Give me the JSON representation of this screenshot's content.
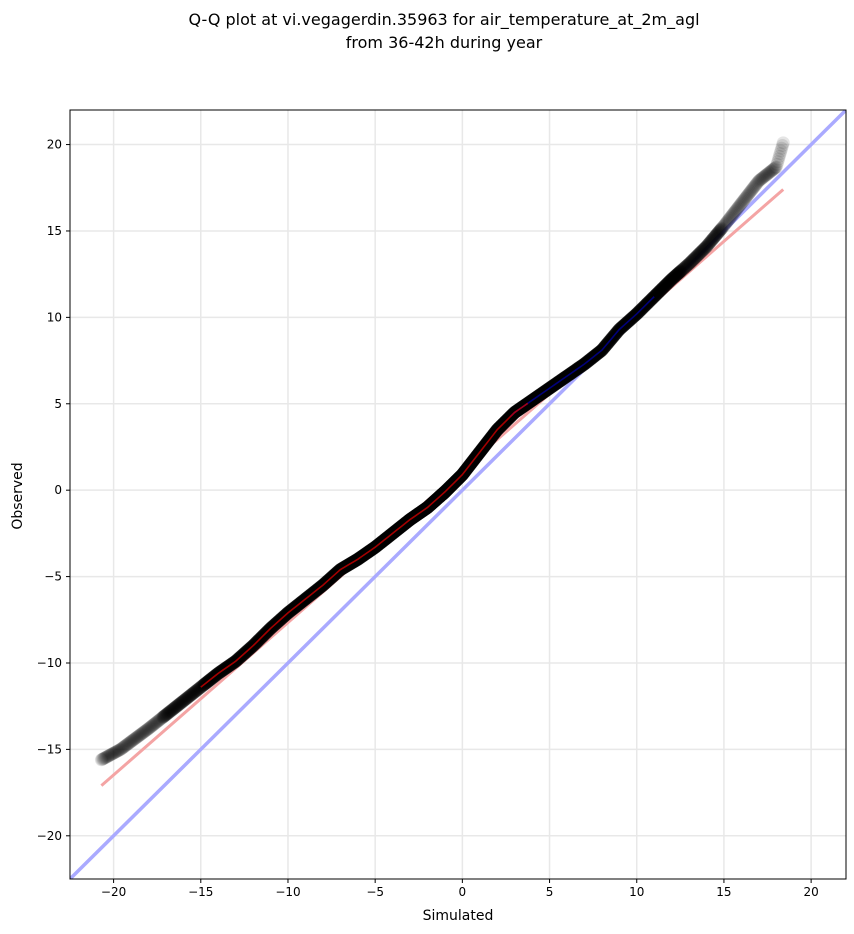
{
  "chart_data": {
    "type": "scatter",
    "title_line1": "Q-Q plot at vi.vegagerdin.35963 for air_temperature_at_2m_agl",
    "title_line2": "from 36-42h during year",
    "xlabel": "Simulated",
    "ylabel": "Observed",
    "xlim": [
      -22.5,
      22
    ],
    "ylim": [
      -22.5,
      22
    ],
    "xticks": [
      -20,
      -15,
      -10,
      -5,
      0,
      5,
      10,
      15,
      20
    ],
    "yticks": [
      -20,
      -15,
      -10,
      -5,
      0,
      5,
      10,
      15,
      20
    ],
    "xtick_labels": [
      "−20",
      "−15",
      "−10",
      "−5",
      "0",
      "5",
      "10",
      "15",
      "20"
    ],
    "ytick_labels": [
      "−20",
      "−15",
      "−10",
      "−5",
      "0",
      "5",
      "10",
      "15",
      "20"
    ],
    "grid": true,
    "identity_line": {
      "x": [
        -22.5,
        22
      ],
      "y": [
        -22.5,
        22
      ],
      "color": "#aaaaff"
    },
    "fit_line": {
      "x": [
        -20.7,
        18.4
      ],
      "y": [
        -17.1,
        17.4
      ],
      "color": "#f4a4a4"
    },
    "quantile_curve": {
      "x": [
        -20.7,
        -19.6,
        -18.0,
        -17.0,
        -16.0,
        -15.0,
        -14.0,
        -13.0,
        -12.0,
        -11.0,
        -10.0,
        -9.0,
        -8.0,
        -7.0,
        -6.0,
        -5.0,
        -4.0,
        -3.0,
        -2.0,
        -1.0,
        0.0,
        1.0,
        2.0,
        3.0,
        4.0,
        5.0,
        6.0,
        7.0,
        8.0,
        9.0,
        10.0,
        11.0,
        12.0,
        13.0,
        14.0,
        15.0,
        16.0,
        17.0,
        18.0,
        18.4
      ],
      "y": [
        -15.6,
        -15.0,
        -13.8,
        -13.0,
        -12.2,
        -11.4,
        -10.6,
        -9.9,
        -9.0,
        -8.0,
        -7.1,
        -6.3,
        -5.5,
        -4.6,
        -4.0,
        -3.3,
        -2.5,
        -1.7,
        -1.0,
        -0.1,
        0.9,
        2.2,
        3.5,
        4.5,
        5.2,
        5.9,
        6.6,
        7.3,
        8.1,
        9.3,
        10.2,
        11.2,
        12.2,
        13.1,
        14.1,
        15.3,
        16.6,
        17.9,
        18.7,
        20.1
      ]
    },
    "colors": {
      "points": "#000000",
      "inner_fit": "#cc0000",
      "inner_identity": "#000099"
    }
  }
}
